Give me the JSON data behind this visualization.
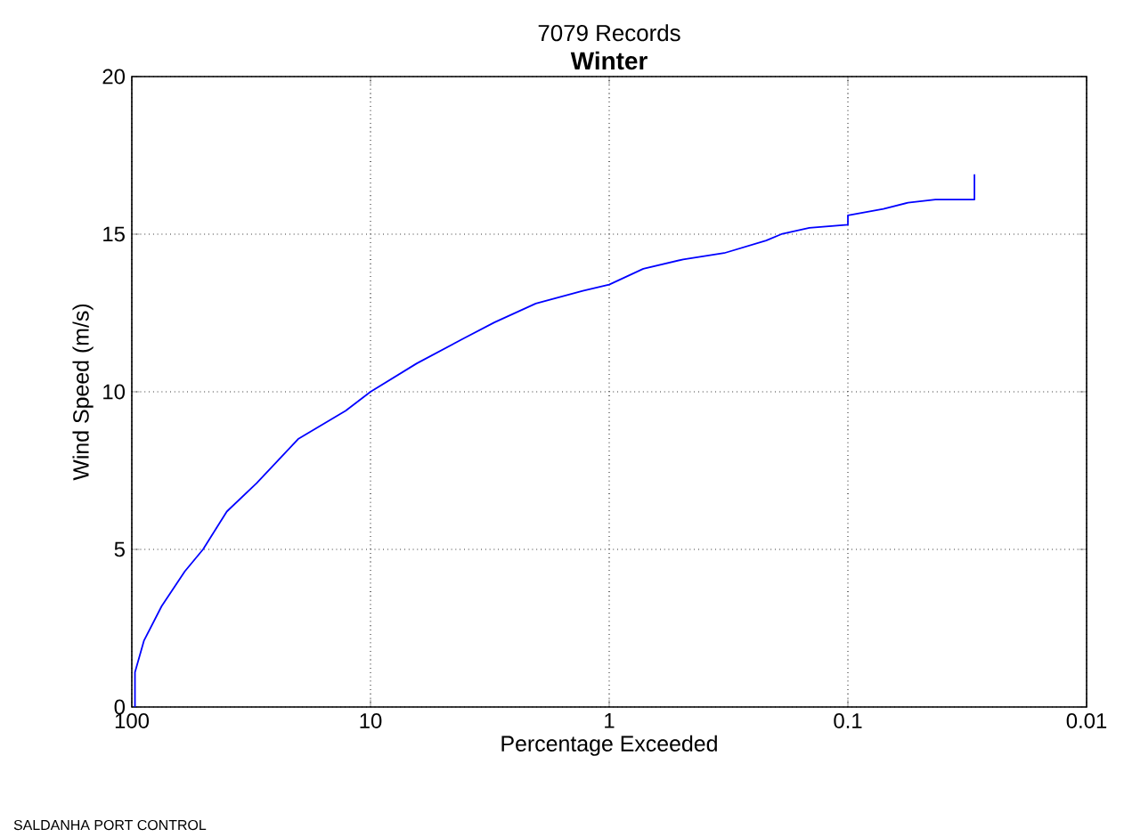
{
  "chart_data": {
    "type": "line",
    "title": "Winter",
    "subtitle": "7079 Records",
    "xlabel": "Percentage Exceeded",
    "ylabel": "Wind Speed (m/s)",
    "annotations": [
      "SALDANHA PORT CONTROL"
    ],
    "x": [
      97,
      97,
      89,
      75,
      60,
      50.3,
      40,
      30,
      20.1,
      12.7,
      10,
      6.4,
      4.05,
      3.03,
      2.03,
      1.29,
      1.0,
      0.72,
      0.49,
      0.33,
      0.22,
      0.19,
      0.145,
      0.1,
      0.1,
      0.071,
      0.056,
      0.043,
      0.0295,
      0.0295
    ],
    "series": [
      {
        "color": "#0000ff",
        "values": [
          0,
          1.1,
          2.1,
          3.2,
          4.3,
          5.0,
          6.2,
          7.1,
          8.5,
          9.4,
          10.0,
          10.9,
          11.7,
          12.2,
          12.8,
          13.2,
          13.4,
          13.9,
          14.2,
          14.4,
          14.8,
          15.0,
          15.2,
          15.3,
          15.6,
          15.8,
          16.0,
          16.1,
          16.1,
          16.9
        ]
      }
    ],
    "log": "x",
    "xlim": [
      100,
      0.01
    ],
    "ylim": [
      0,
      20
    ],
    "xticks": [
      100,
      10,
      1,
      0.1,
      0.01
    ],
    "yticks": [
      0,
      5,
      10,
      15,
      20
    ],
    "grid": true,
    "marker": "none",
    "line_style": "solid"
  }
}
